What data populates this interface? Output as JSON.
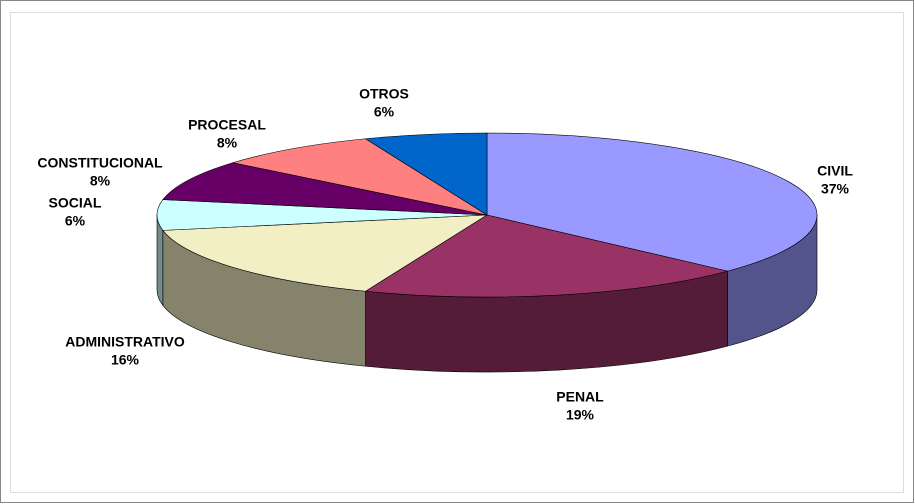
{
  "chart_data": {
    "type": "pie",
    "categories": [
      "CIVIL",
      "PENAL",
      "ADMINISTRATIVO",
      "SOCIAL",
      "CONSTITUCIONAL",
      "PROCESAL",
      "OTROS"
    ],
    "values": [
      37,
      19,
      16,
      6,
      8,
      8,
      6
    ],
    "value_labels": [
      "37%",
      "19%",
      "16%",
      "6%",
      "8%",
      "8%",
      "6%"
    ],
    "colors": [
      "#9999ff",
      "#993366",
      "#f2efc4",
      "#ccffff",
      "#660066",
      "#ff8080",
      "#0066cc"
    ]
  }
}
